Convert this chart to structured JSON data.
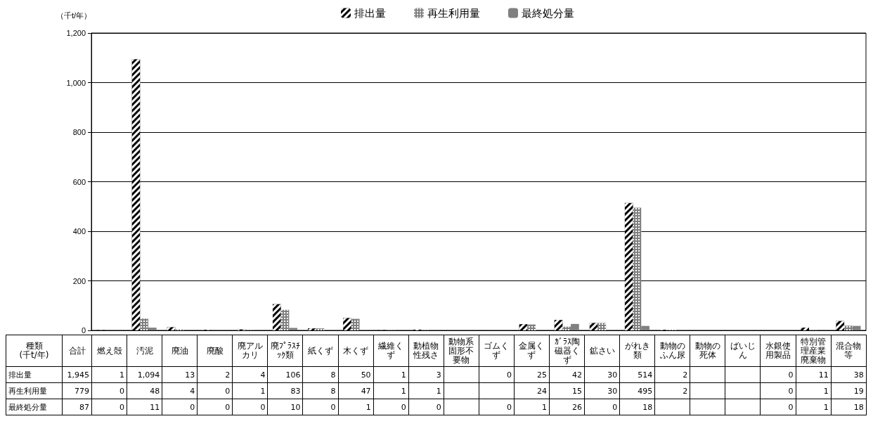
{
  "chart_data": {
    "type": "bar",
    "ylabel": "（千t/年）",
    "categories": [
      "燃え殻",
      "汚泥",
      "廃油",
      "廃酸",
      "廃アルカリ",
      "廃ﾌﾟﾗｽﾁｯｸ類",
      "紙くず",
      "木くず",
      "繊維くず",
      "動植物性残さ",
      "動物系固形不要物",
      "ゴムくず",
      "金属くず",
      "ｶﾞﾗｽ陶磁器くず",
      "鉱さい",
      "がれき類",
      "動物のふん尿",
      "動物の死体",
      "ばいじん",
      "水銀使用製品",
      "特別管理産業廃棄物",
      "混合物等"
    ],
    "series": [
      {
        "name": "排出量",
        "color": "#000000",
        "values": [
          1,
          1094,
          13,
          2,
          4,
          106,
          8,
          50,
          1,
          3,
          null,
          0,
          25,
          42,
          30,
          514,
          2,
          null,
          null,
          0,
          11,
          38
        ],
        "value_labels": [
          "1",
          "1,094",
          "13",
          "2",
          "4",
          "106",
          "8",
          "50",
          "1",
          "3",
          null,
          "0",
          "25",
          "42",
          "30",
          "514",
          "2",
          null,
          null,
          "0",
          "11",
          "38"
        ]
      },
      {
        "name": "再生利用量",
        "color": "#808080",
        "values": [
          0,
          48,
          4,
          0,
          1,
          83,
          8,
          47,
          1,
          1,
          null,
          null,
          24,
          15,
          30,
          495,
          2,
          null,
          null,
          0,
          1,
          19
        ],
        "value_labels": [
          "0",
          "48",
          "4",
          "0",
          "1",
          "83",
          "8",
          "47",
          "1",
          "1",
          null,
          null,
          "24",
          "15",
          "30",
          "495",
          "2",
          null,
          null,
          "0",
          "1",
          "19"
        ]
      },
      {
        "name": "最終処分量",
        "color": "#808080",
        "values": [
          0,
          11,
          0,
          0,
          0,
          10,
          0,
          1,
          0,
          0,
          null,
          0,
          1,
          26,
          0,
          18,
          null,
          null,
          null,
          0,
          1,
          18
        ],
        "value_labels": [
          "0",
          "11",
          "0",
          "0",
          "0",
          "10",
          "0",
          "1",
          "0",
          "0",
          null,
          "0",
          "1",
          "26",
          "0",
          "18",
          null,
          null,
          null,
          "0",
          "1",
          "18"
        ]
      }
    ],
    "ylim": [
      0,
      1200
    ],
    "yticks": [
      0,
      200,
      400,
      600,
      800,
      {
        "value": 1000,
        "label": "1,000"
      },
      {
        "value": 1200,
        "label": "1,200"
      }
    ],
    "grid": "y",
    "legend": "top right",
    "annotations": [
      "種類",
      "(千t/年)",
      "合計",
      "1,945",
      "779",
      "87"
    ]
  }
}
